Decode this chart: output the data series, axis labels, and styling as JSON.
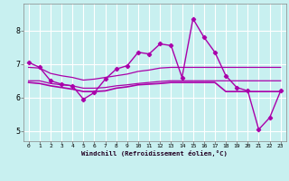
{
  "xlabel": "Windchill (Refroidissement éolien,°C)",
  "bg_color": "#c8f0f0",
  "line_color": "#aa00aa",
  "grid_color": "#ffffff",
  "xlim": [
    -0.5,
    23.5
  ],
  "ylim": [
    4.7,
    8.8
  ],
  "yticks": [
    5,
    6,
    7,
    8
  ],
  "xticks": [
    0,
    1,
    2,
    3,
    4,
    5,
    6,
    7,
    8,
    9,
    10,
    11,
    12,
    13,
    14,
    15,
    16,
    17,
    18,
    19,
    20,
    21,
    22,
    23
  ],
  "line_spiky": {
    "x": [
      0,
      1,
      2,
      3,
      4,
      5,
      6,
      7,
      8,
      9,
      10,
      11,
      12,
      13,
      14,
      15,
      16,
      17,
      18,
      19,
      20,
      21,
      22,
      23
    ],
    "y": [
      7.05,
      6.9,
      6.5,
      6.4,
      6.35,
      5.95,
      6.15,
      6.55,
      6.85,
      6.95,
      7.35,
      7.3,
      7.6,
      7.55,
      6.6,
      8.35,
      7.8,
      7.35,
      6.65,
      6.3,
      6.2,
      5.05,
      5.4,
      6.2
    ]
  },
  "line_trend_up": {
    "x": [
      0,
      1,
      2,
      3,
      4,
      5,
      6,
      7,
      8,
      9,
      10,
      11,
      12,
      13,
      14,
      15,
      16,
      17,
      18,
      19,
      20,
      21,
      22,
      23
    ],
    "y": [
      6.9,
      6.88,
      6.72,
      6.65,
      6.6,
      6.52,
      6.55,
      6.6,
      6.65,
      6.7,
      6.78,
      6.82,
      6.88,
      6.9,
      6.9,
      6.9,
      6.9,
      6.9,
      6.9,
      6.9,
      6.9,
      6.9,
      6.9,
      6.9
    ]
  },
  "line_flat_upper": {
    "x": [
      0,
      1,
      2,
      3,
      4,
      5,
      6,
      7,
      8,
      9,
      10,
      11,
      12,
      13,
      14,
      15,
      16,
      17,
      18,
      19,
      20,
      21,
      22,
      23
    ],
    "y": [
      6.5,
      6.5,
      6.42,
      6.38,
      6.35,
      6.28,
      6.28,
      6.3,
      6.35,
      6.38,
      6.42,
      6.45,
      6.48,
      6.5,
      6.5,
      6.5,
      6.5,
      6.5,
      6.5,
      6.5,
      6.5,
      6.5,
      6.5,
      6.5
    ]
  },
  "line_flat_lower": {
    "x": [
      0,
      1,
      2,
      3,
      4,
      5,
      6,
      7,
      8,
      9,
      10,
      11,
      12,
      13,
      14,
      15,
      16,
      17,
      18,
      19,
      20,
      21,
      22,
      23
    ],
    "y": [
      6.45,
      6.42,
      6.35,
      6.3,
      6.25,
      6.18,
      6.18,
      6.2,
      6.28,
      6.32,
      6.38,
      6.4,
      6.42,
      6.45,
      6.45,
      6.45,
      6.45,
      6.45,
      6.18,
      6.18,
      6.18,
      6.18,
      6.18,
      6.18
    ]
  }
}
